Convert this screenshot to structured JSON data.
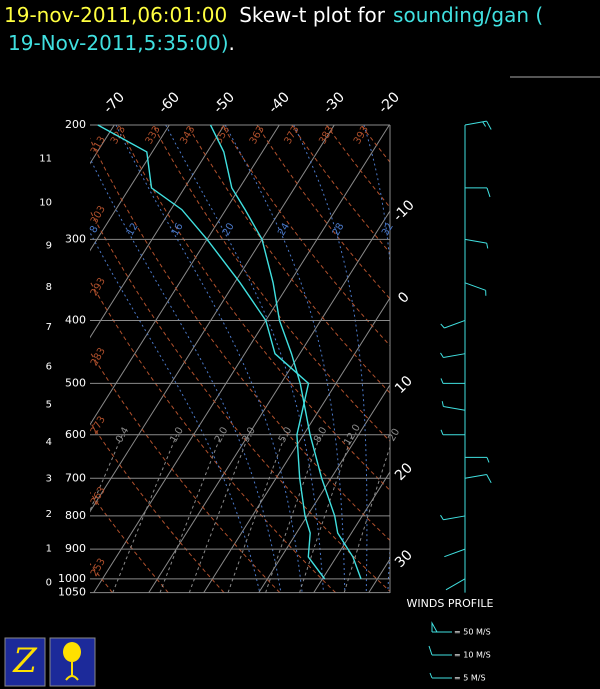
{
  "header": {
    "datetime": "19-nov-2011,06:01:00",
    "title": "Skew-t plot for",
    "station": "sounding/gan (",
    "station_time": "19-Nov-2011,5:35:00)",
    "period": "."
  },
  "chart_data": {
    "type": "skewt",
    "pressure": [
      1000,
      925,
      850,
      800,
      700,
      600,
      500,
      450,
      400,
      350,
      300,
      270,
      250,
      220,
      200
    ],
    "series": [
      {
        "color": "#40e0e0",
        "values": [
          27,
          23,
          17.5,
          15,
          8.3,
          1.2,
          -6.5,
          -11.5,
          -17.5,
          -23,
          -30,
          -36.5,
          -41.4,
          -47,
          -52.5
        ]
      },
      {
        "color": "#40e0e0",
        "values": [
          20.4,
          14.9,
          12.5,
          9.6,
          4.3,
          -1.2,
          -5,
          -14.5,
          -20,
          -29,
          -40,
          -48,
          -56,
          -61,
          -73
        ]
      }
    ],
    "ylim": [
      200,
      1050
    ],
    "yscale": "log",
    "yticks": [
      200,
      300,
      400,
      500,
      600,
      700,
      800,
      900,
      1000,
      1050
    ],
    "height_ticks": [
      0,
      1,
      2,
      3,
      4,
      5,
      6,
      7,
      8,
      9,
      10,
      11
    ],
    "xticks": [
      -70,
      -60,
      -50,
      -40,
      -30,
      -20,
      -10,
      0,
      10,
      20,
      30
    ],
    "isotherm_color": "#8a8a8a",
    "theta_labels": [
      253,
      263,
      273,
      283,
      293,
      303,
      313,
      323,
      333,
      343,
      353,
      363,
      373,
      383,
      393
    ],
    "theta_color": "#b0502c",
    "theta_w_labels": [
      8,
      12,
      16,
      20,
      24,
      28,
      32
    ],
    "theta_w_color": "#4a78c8",
    "mixing_ratio_labels": [
      0.4,
      {
        "value": 1,
        "label": "1.0"
      },
      {
        "value": 2,
        "label": "2.0"
      },
      {
        "value": 3,
        "label": "3.0"
      },
      {
        "value": 5,
        "label": "5.0"
      },
      {
        "value": 8,
        "label": "8.0"
      },
      {
        "value": 12,
        "label": "12.0"
      },
      20
    ],
    "mixing_ratio_color": "#8a8a8a",
    "wind": {
      "title": "WINDS PROFILE",
      "color": "#40e0e0",
      "pressure": [
        200,
        250,
        300,
        350,
        400,
        450,
        500,
        550,
        600,
        650,
        700,
        800,
        900,
        1000
      ],
      "speed": [
        15,
        10,
        8,
        6,
        5,
        6,
        5,
        5,
        6,
        8,
        10,
        5,
        3,
        3
      ],
      "direction": [
        80,
        90,
        100,
        110,
        250,
        260,
        270,
        280,
        270,
        90,
        80,
        260,
        250,
        240
      ],
      "legend": [
        {
          "value": 50,
          "label": "= 50 M/S"
        },
        {
          "value": 10,
          "label": "= 10 M/S"
        },
        {
          "value": 5,
          "label": "= 5 M/S"
        }
      ]
    }
  }
}
